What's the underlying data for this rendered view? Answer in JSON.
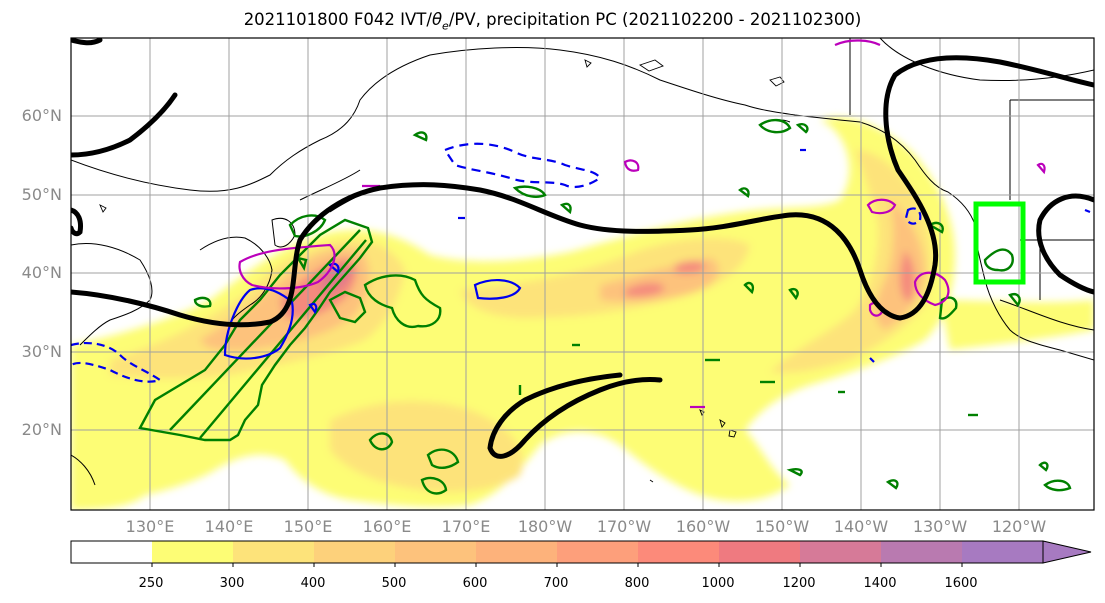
{
  "title": {
    "prefix": "2021101800 F042 IVT/",
    "theta": "θ",
    "theta_sub": "e",
    "suffix": "/PV, precipitation PC (2021102200 - 2021102300)"
  },
  "map": {
    "lat_labels": [
      "60°N",
      "50°N",
      "40°N",
      "30°N",
      "20°N"
    ],
    "lon_labels": [
      "130°E",
      "140°E",
      "150°E",
      "160°E",
      "170°E",
      "180°W",
      "170°W",
      "160°W",
      "150°W",
      "140°W",
      "130°W",
      "120°W"
    ],
    "colors": {
      "ivt_jet": "#000000",
      "contour_green": "#008000",
      "contour_blue": "#0000ee",
      "contour_magenta": "#bb00bb",
      "target_box": "#00ff00",
      "grid": "#a0a0a0"
    }
  },
  "colorbar": {
    "ticks": [
      "250",
      "300",
      "400",
      "500",
      "600",
      "700",
      "800",
      "1000",
      "1200",
      "1400",
      "1600"
    ],
    "colors": [
      "#ffffff",
      "#fdfd75",
      "#fde37a",
      "#fdd17b",
      "#fdc27c",
      "#fdb27b",
      "#fd9f7b",
      "#fc8a7a",
      "#ef7a80",
      "#d67a98",
      "#b97ab0",
      "#a77ac1"
    ]
  }
}
